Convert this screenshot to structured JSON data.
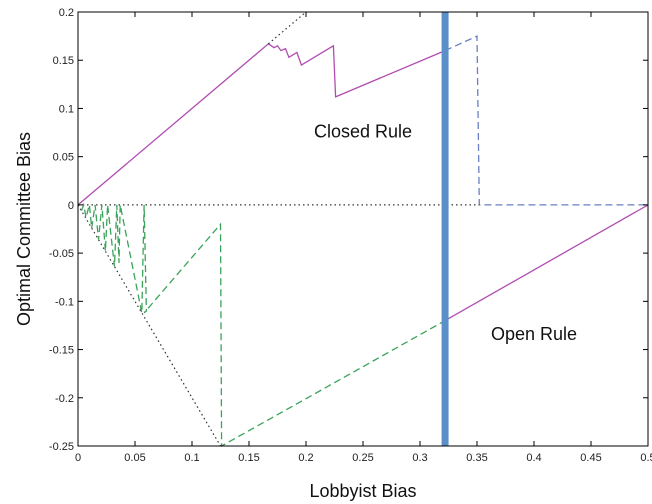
{
  "chart_data": {
    "type": "line",
    "title": "",
    "xlabel": "Lobbyist Bias",
    "ylabel": "Optimal Committee Bias",
    "xlim": [
      0,
      0.5
    ],
    "ylim": [
      -0.25,
      0.2
    ],
    "xticks": [
      0,
      0.05,
      0.1,
      0.15,
      0.2,
      0.25,
      0.3,
      0.35,
      0.4,
      0.45,
      0.5
    ],
    "xtick_labels": [
      "0",
      "0.05",
      "0.1",
      "0.15",
      "0.2",
      "0.25",
      "0.3",
      "0.35",
      "0.4",
      "0.45",
      "0.5"
    ],
    "yticks": [
      0.2,
      0.15,
      0.1,
      0.05,
      0,
      -0.05,
      -0.1,
      -0.15,
      -0.2,
      -0.25
    ],
    "ytick_labels": [
      "0.2",
      "0.15",
      "0.1",
      "0.05",
      "0",
      "-0.05",
      "-0.1",
      "-0.15",
      "-0.2",
      "-0.25"
    ],
    "grid": false,
    "legend": "none",
    "annotations": [
      {
        "text": "Closed Rule",
        "x": 0.25,
        "y": 0.07
      },
      {
        "text": "Open Rule",
        "x": 0.4,
        "y": -0.14
      }
    ],
    "vertical_band": {
      "x": 0.322,
      "color": "#5b8fc9"
    },
    "series": [
      {
        "style": "solid",
        "color": "#b04db0",
        "points": [
          [
            0,
            0
          ],
          [
            0.167,
            0.167
          ],
          [
            0.172,
            0.163
          ],
          [
            0.175,
            0.165
          ],
          [
            0.178,
            0.16
          ],
          [
            0.182,
            0.162
          ],
          [
            0.185,
            0.153
          ],
          [
            0.192,
            0.158
          ],
          [
            0.196,
            0.145
          ],
          [
            0.224,
            0.165
          ],
          [
            0.226,
            0.112
          ],
          [
            0.228,
            0.113
          ],
          [
            0.322,
            0.16
          ]
        ]
      },
      {
        "style": "dashed",
        "color": "#6a7fc4",
        "points": [
          [
            0.322,
            0.16
          ],
          [
            0.35,
            0.175
          ],
          [
            0.352,
            0
          ],
          [
            0.5,
            0
          ]
        ]
      },
      {
        "style": "dotted",
        "color": "#333333",
        "points": [
          [
            0.167,
            0.167
          ],
          [
            0.2,
            0.2
          ]
        ]
      },
      {
        "style": "dotted",
        "color": "#333333",
        "points": [
          [
            0,
            0
          ],
          [
            0.352,
            0
          ]
        ]
      },
      {
        "style": "dotted",
        "color": "#333333",
        "points": [
          [
            0,
            0
          ],
          [
            0.125,
            -0.25
          ]
        ]
      },
      {
        "style": "dashed",
        "color": "#3aa35a",
        "points": [
          [
            0.003,
            -0.006
          ],
          [
            0.005,
            0
          ],
          [
            0.007,
            -0.013
          ],
          [
            0.01,
            0
          ],
          [
            0.012,
            -0.024
          ],
          [
            0.015,
            0
          ],
          [
            0.018,
            -0.036
          ],
          [
            0.021,
            0
          ],
          [
            0.024,
            -0.048
          ],
          [
            0.026,
            0
          ],
          [
            0.032,
            -0.064
          ],
          [
            0.034,
            0
          ],
          [
            0.036,
            -0.06
          ],
          [
            0.037,
            0
          ],
          [
            0.056,
            -0.112
          ],
          [
            0.058,
            0
          ],
          [
            0.06,
            -0.11
          ],
          [
            0.058,
            -0.112
          ],
          [
            0.125,
            -0.02
          ],
          [
            0.126,
            -0.25
          ],
          [
            0.322,
            -0.12
          ]
        ]
      },
      {
        "style": "solid",
        "color": "#b04db0",
        "points": [
          [
            0.322,
            -0.12
          ],
          [
            0.5,
            0
          ]
        ]
      }
    ]
  }
}
